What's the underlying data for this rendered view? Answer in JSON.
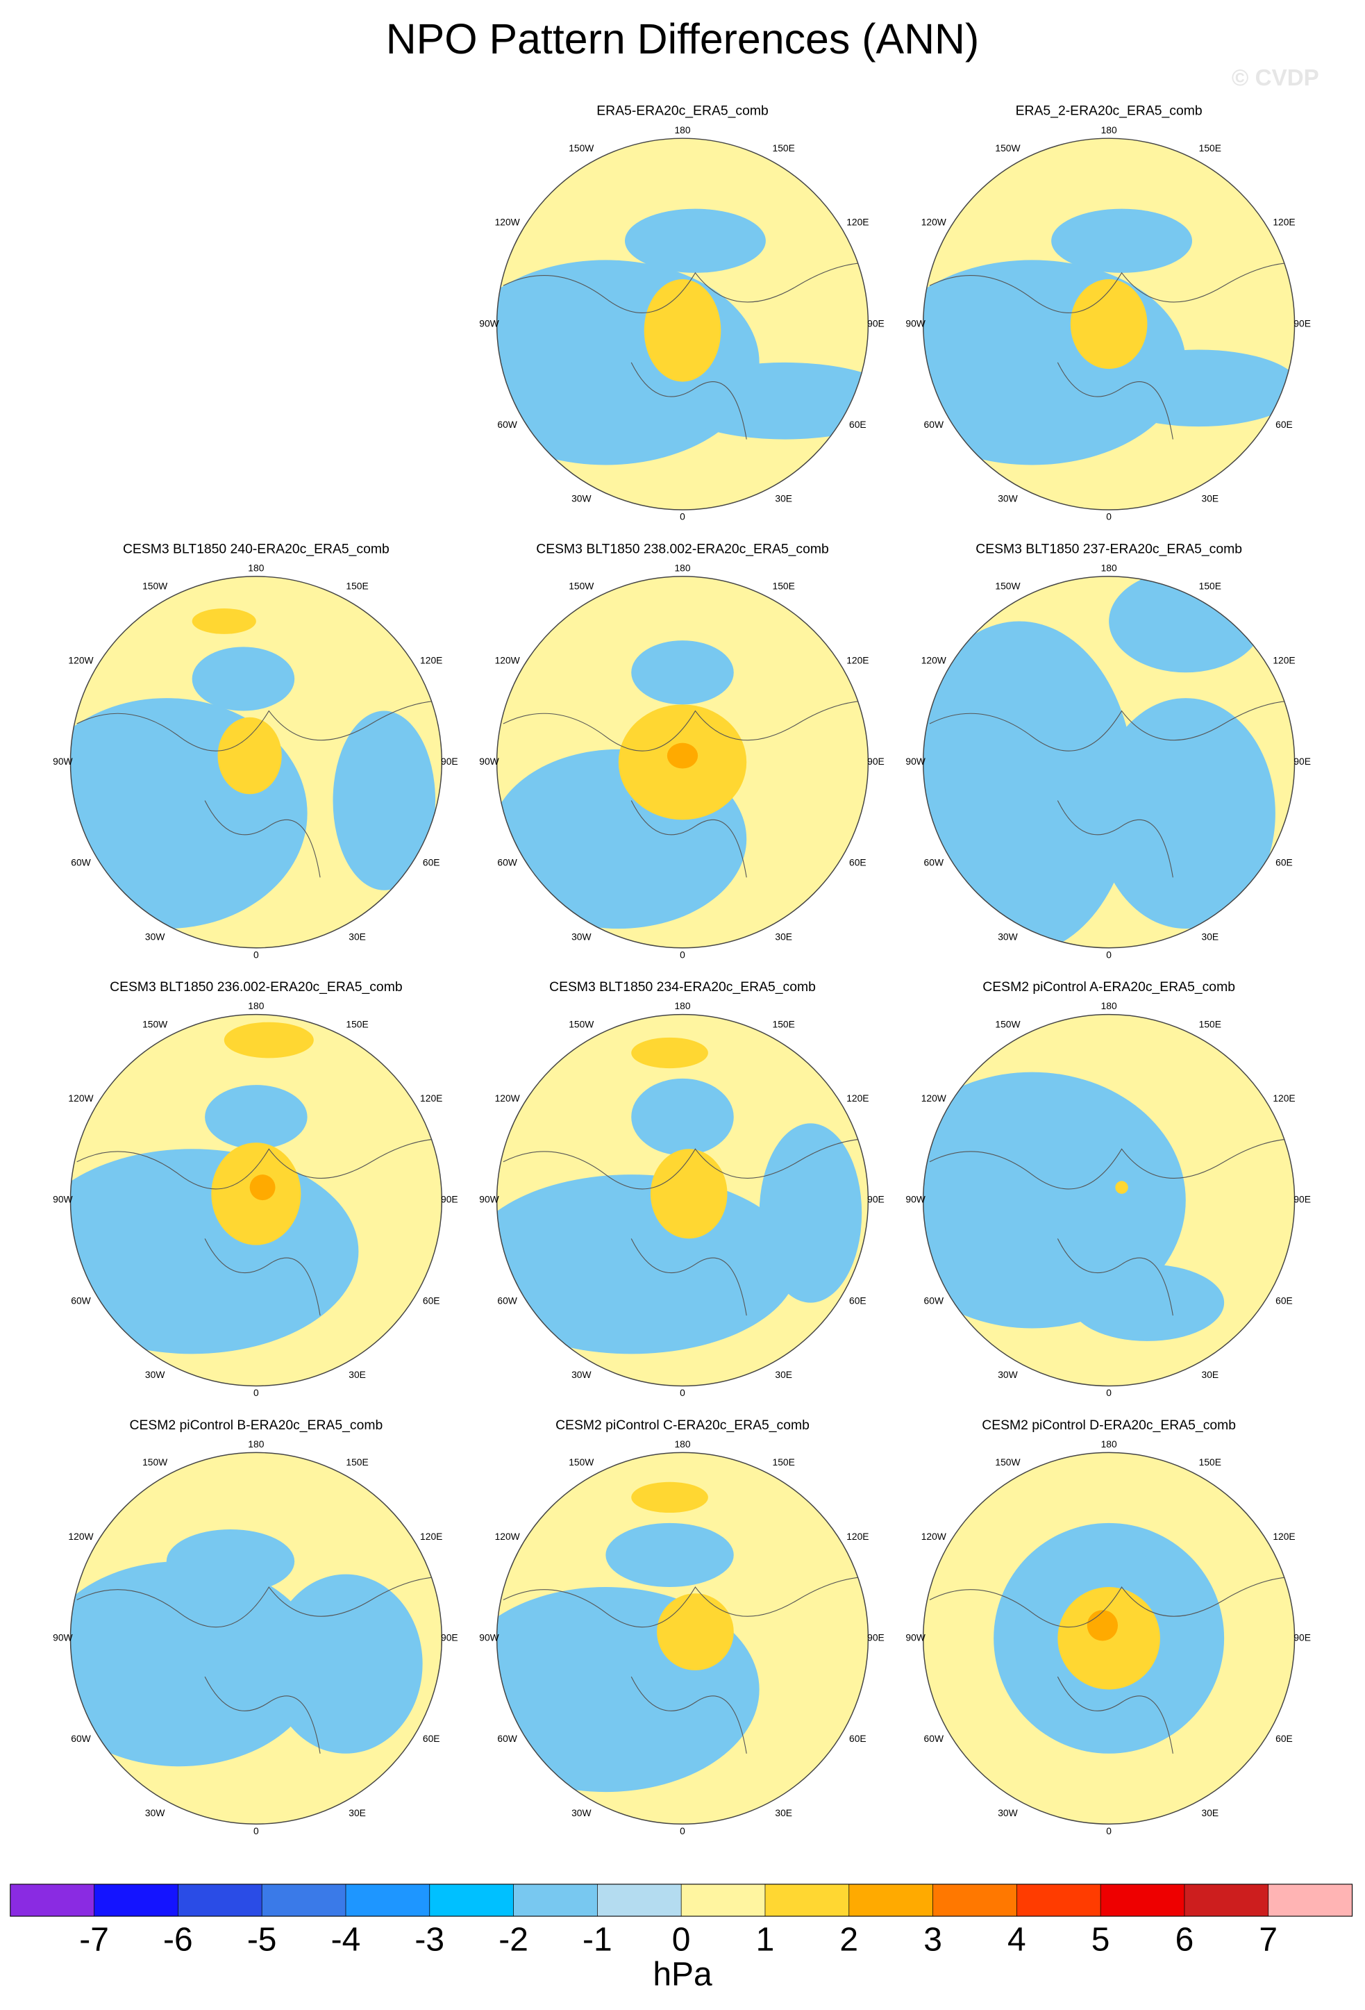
{
  "title": "NPO Pattern Differences (ANN)",
  "watermark": "© CVDP",
  "longitude_labels": [
    "180",
    "150E",
    "120E",
    "90E",
    "60E",
    "30E",
    "0",
    "30W",
    "60W",
    "90W",
    "120W",
    "150W"
  ],
  "panels": [
    {
      "title": "ERA5-ERA20c_ERA5_comb"
    },
    {
      "title": "ERA5_2-ERA20c_ERA5_comb"
    },
    {
      "title": "CESM3 BLT1850 240-ERA20c_ERA5_comb"
    },
    {
      "title": "CESM3 BLT1850 238.002-ERA20c_ERA5_comb"
    },
    {
      "title": "CESM3 BLT1850 237-ERA20c_ERA5_comb"
    },
    {
      "title": "CESM3 BLT1850 236.002-ERA20c_ERA5_comb"
    },
    {
      "title": "CESM3 BLT1850 234-ERA20c_ERA5_comb"
    },
    {
      "title": "CESM2 piControl A-ERA20c_ERA5_comb"
    },
    {
      "title": "CESM2 piControl B-ERA20c_ERA5_comb"
    },
    {
      "title": "CESM2 piControl C-ERA20c_ERA5_comb"
    },
    {
      "title": "CESM2 piControl D-ERA20c_ERA5_comb"
    }
  ],
  "colorbar": {
    "ticks": [
      -7,
      -6,
      -5,
      -4,
      -3,
      -2,
      -1,
      0,
      1,
      2,
      3,
      4,
      5,
      6,
      7
    ],
    "colors": [
      "#8a2be2",
      "#1414ff",
      "#2a4ce6",
      "#3a7ae8",
      "#1e96ff",
      "#00c0ff",
      "#78c8f0",
      "#b4dcf0",
      "#fff5a0",
      "#ffd732",
      "#ffaa00",
      "#ff7800",
      "#ff3c00",
      "#ee0000",
      "#cd1e1e",
      "#ffb4b4"
    ],
    "unit": "hPa"
  }
}
